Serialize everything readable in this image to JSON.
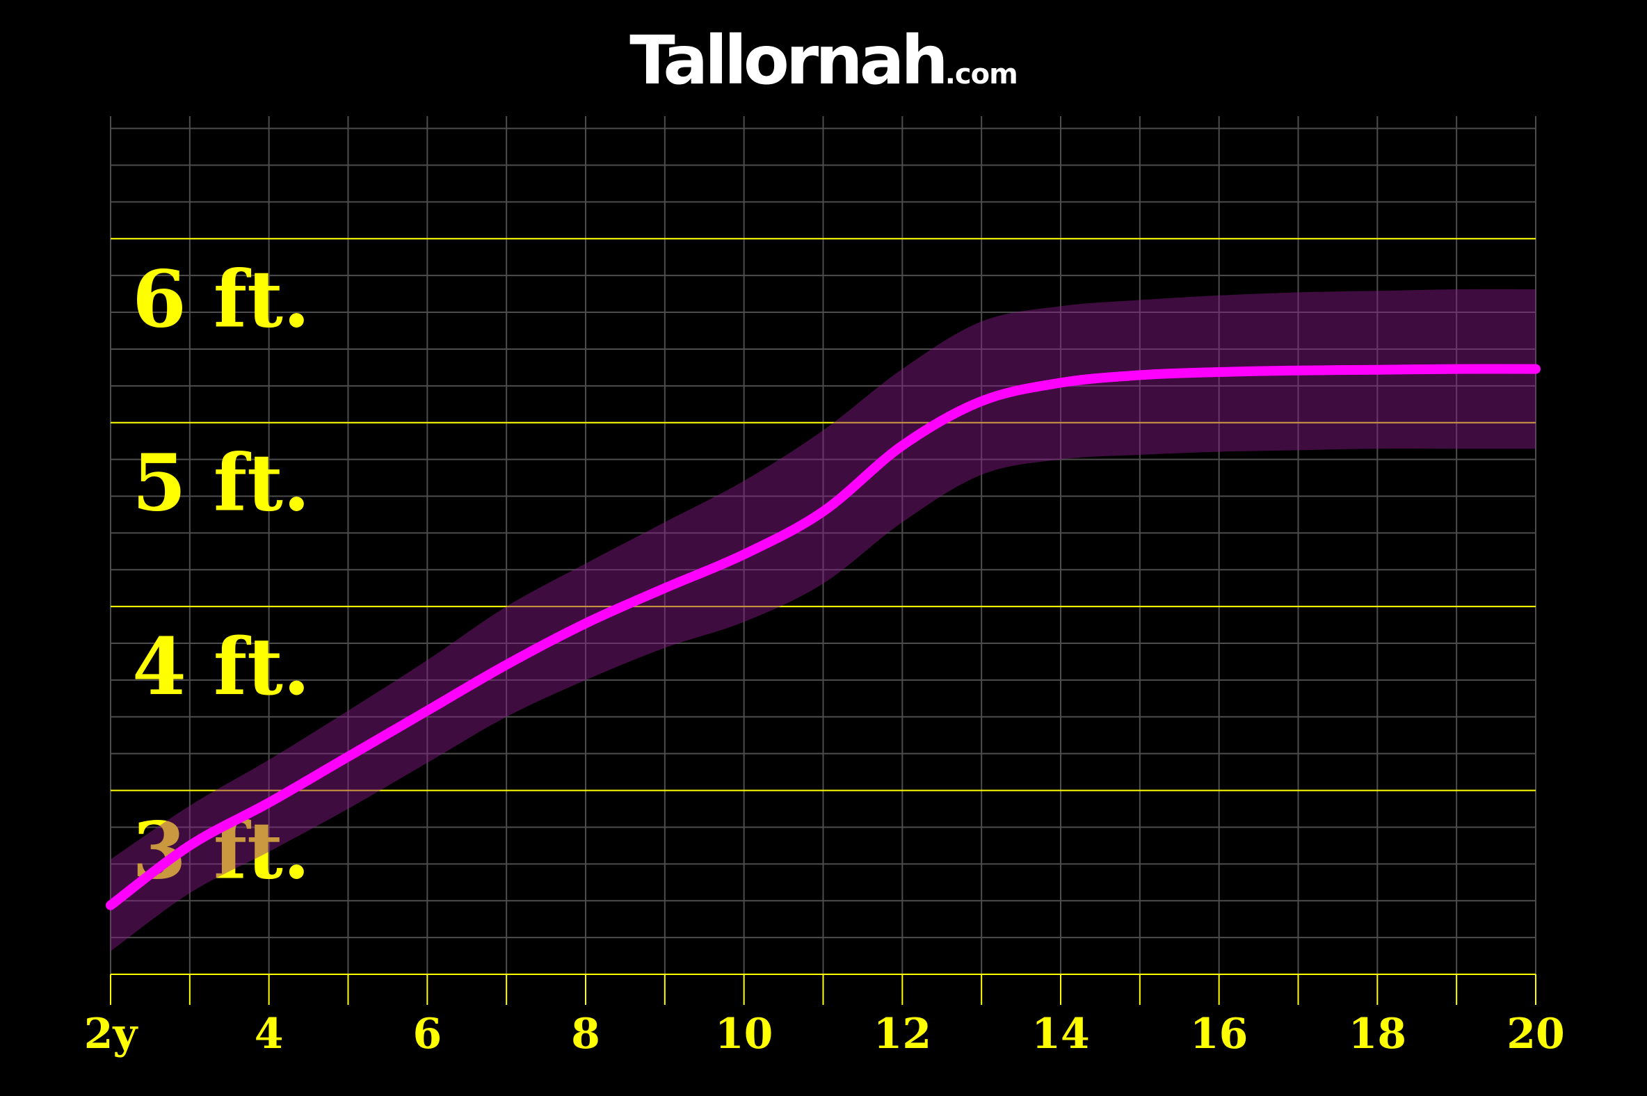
{
  "logo": {
    "name": "Tallornah",
    "domain": ".com"
  },
  "colors": {
    "background": "#000000",
    "grid": "#4d4d4d",
    "foot_lines": "#ffff00",
    "labels": "#ffff00",
    "line": "#ff00ff",
    "band": "#8a1a8a",
    "logo": "#ffffff"
  },
  "chart_data": {
    "type": "line",
    "title": "",
    "xlabel": "",
    "ylabel": "",
    "xlim": [
      2,
      20
    ],
    "ylim": [
      24,
      80
    ],
    "x_units": "years",
    "y_units": "inches",
    "grid": true,
    "x_minor_step": 1,
    "y_minor_step": 2.4,
    "x_ticks": [
      {
        "value": 2,
        "label": "2y"
      },
      {
        "value": 4,
        "label": "4"
      },
      {
        "value": 6,
        "label": "6"
      },
      {
        "value": 8,
        "label": "8"
      },
      {
        "value": 10,
        "label": "10"
      },
      {
        "value": 12,
        "label": "12"
      },
      {
        "value": 14,
        "label": "14"
      },
      {
        "value": 16,
        "label": "16"
      },
      {
        "value": 18,
        "label": "18"
      },
      {
        "value": 20,
        "label": "20"
      }
    ],
    "y_bands": [
      {
        "value": 72,
        "label": "6 ft."
      },
      {
        "value": 60,
        "label": "5 ft."
      },
      {
        "value": 48,
        "label": "4 ft."
      },
      {
        "value": 36,
        "label": "3 ft."
      }
    ],
    "series": [
      {
        "kind": "median",
        "x": [
          2,
          3,
          4,
          5,
          6,
          7,
          8,
          9,
          10,
          11,
          12,
          13,
          14,
          15,
          16,
          17,
          18,
          19,
          20
        ],
        "y": [
          28.5,
          32.4,
          35.2,
          38.2,
          41.2,
          44.2,
          46.9,
          49.2,
          51.4,
          54.2,
          58.5,
          61.4,
          62.6,
          63.1,
          63.3,
          63.4,
          63.45,
          63.5,
          63.5
        ]
      }
    ],
    "range_band": {
      "x": [
        2,
        3,
        4,
        5,
        6,
        7,
        8,
        9,
        10,
        11,
        12,
        13,
        14,
        15,
        16,
        17,
        18,
        19,
        20
      ],
      "upper": [
        31.5,
        35.0,
        38.0,
        41.2,
        44.5,
        48.0,
        50.8,
        53.5,
        56.2,
        59.5,
        63.5,
        66.6,
        67.6,
        68.0,
        68.3,
        68.5,
        68.6,
        68.7,
        68.7
      ],
      "lower": [
        25.5,
        29.3,
        32.0,
        34.8,
        37.8,
        40.8,
        43.2,
        45.3,
        47.0,
        49.5,
        53.5,
        56.6,
        57.6,
        57.9,
        58.1,
        58.2,
        58.3,
        58.3,
        58.3
      ]
    }
  }
}
